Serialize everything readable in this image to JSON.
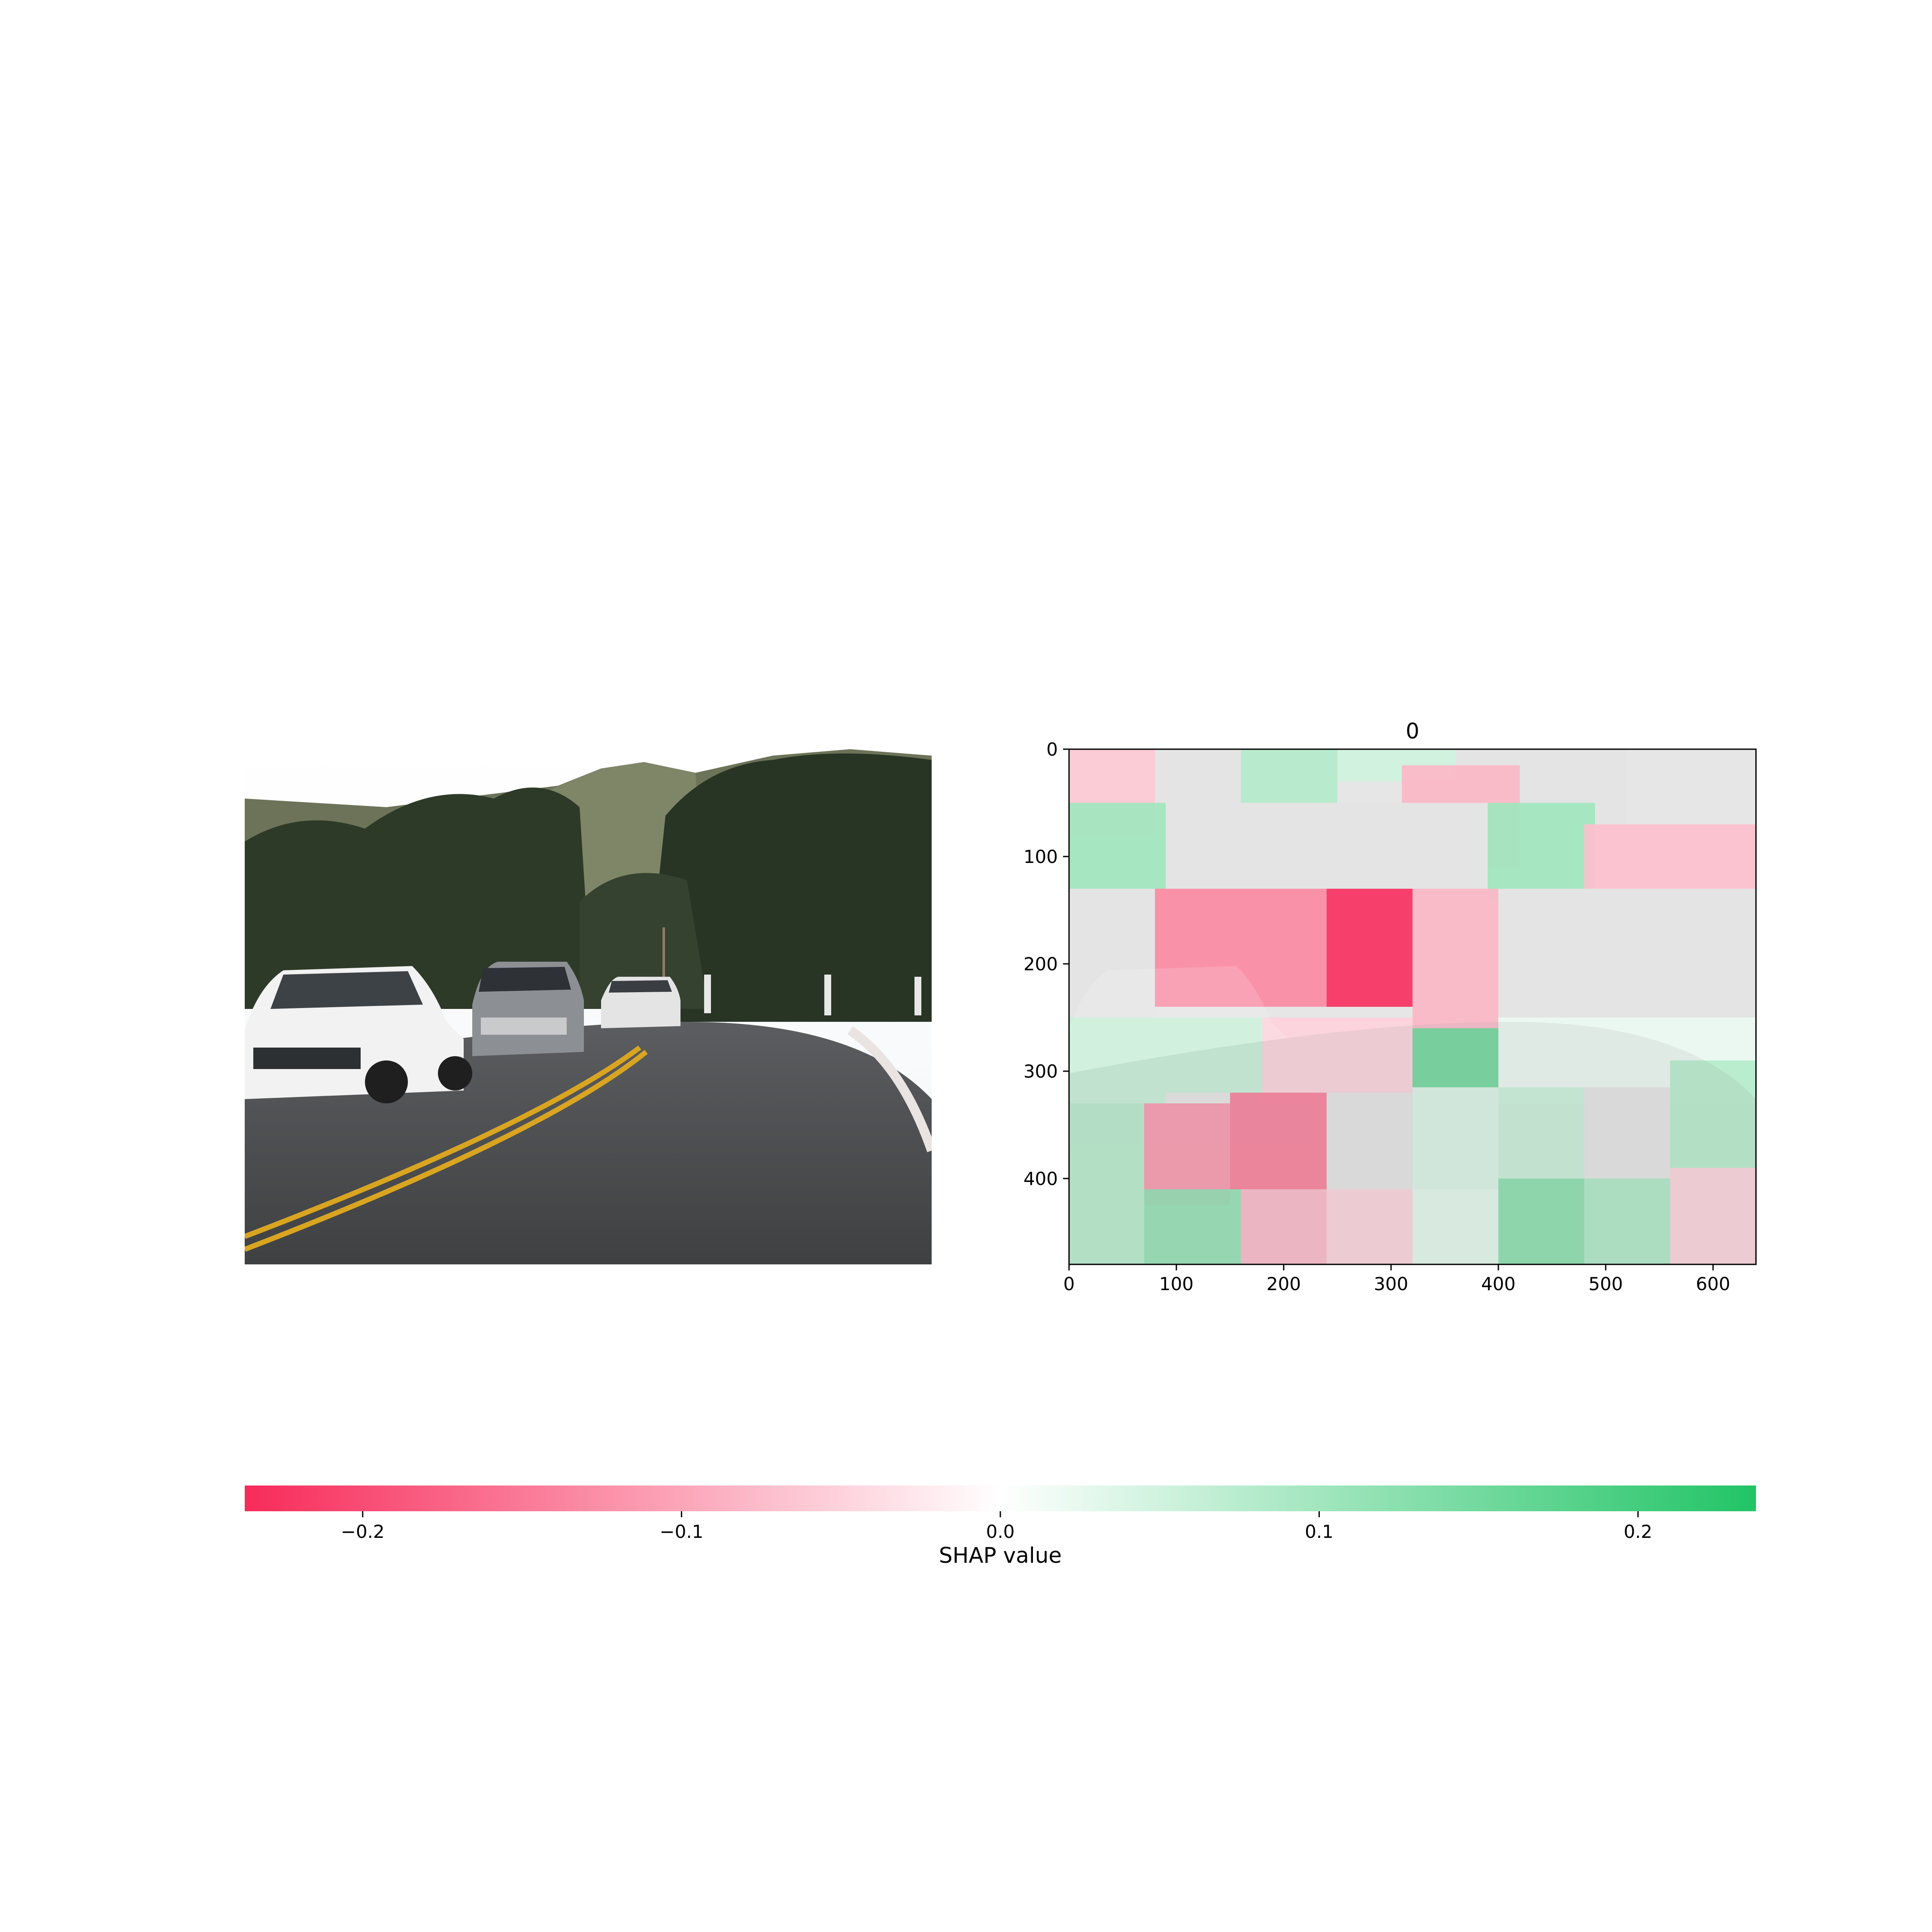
{
  "chart_data": [
    {
      "type": "image",
      "panel": "input-image",
      "title": "",
      "content": "road-scene-photo"
    },
    {
      "type": "heatmap",
      "panel": "shap-superpixel-map",
      "title": "0",
      "xlim": [
        0,
        640
      ],
      "ylim": [
        480,
        0
      ],
      "xticks": [
        0,
        100,
        200,
        300,
        400,
        500,
        600
      ],
      "yticks": [
        0,
        100,
        200,
        300,
        400
      ],
      "segments": [
        {
          "cells": [
            [
              0,
              0
            ],
            [
              80,
              0
            ],
            [
              80,
              80
            ],
            [
              0,
              80
            ]
          ],
          "value": -0.06
        },
        {
          "cells": [
            [
              80,
              0
            ],
            [
              160,
              0
            ],
            [
              160,
              50
            ],
            [
              80,
              50
            ]
          ],
          "value": 0.0
        },
        {
          "cells": [
            [
              160,
              0
            ],
            [
              250,
              0
            ],
            [
              250,
              50
            ],
            [
              160,
              50
            ]
          ],
          "value": 0.08
        },
        {
          "cells": [
            [
              250,
              0
            ],
            [
              360,
              0
            ],
            [
              360,
              30
            ],
            [
              250,
              30
            ]
          ],
          "value": 0.05
        },
        {
          "cells": [
            [
              360,
              0
            ],
            [
              520,
              0
            ],
            [
              520,
              80
            ],
            [
              360,
              80
            ]
          ],
          "value": 0.0
        },
        {
          "cells": [
            [
              0,
              50
            ],
            [
              90,
              50
            ],
            [
              90,
              130
            ],
            [
              0,
              130
            ]
          ],
          "value": 0.1
        },
        {
          "cells": [
            [
              310,
              15
            ],
            [
              420,
              15
            ],
            [
              420,
              110
            ],
            [
              310,
              110
            ]
          ],
          "value": -0.08
        },
        {
          "cells": [
            [
              390,
              50
            ],
            [
              490,
              50
            ],
            [
              490,
              140
            ],
            [
              390,
              140
            ]
          ],
          "value": 0.1
        },
        {
          "cells": [
            [
              480,
              70
            ],
            [
              640,
              70
            ],
            [
              640,
              140
            ],
            [
              480,
              140
            ]
          ],
          "value": -0.07
        },
        {
          "cells": [
            [
              90,
              50
            ],
            [
              390,
              50
            ],
            [
              390,
              130
            ],
            [
              90,
              130
            ]
          ],
          "value": 0.0
        },
        {
          "cells": [
            [
              0,
              130
            ],
            [
              80,
              130
            ],
            [
              80,
              250
            ],
            [
              0,
              250
            ]
          ],
          "value": 0.0
        },
        {
          "cells": [
            [
              80,
              130
            ],
            [
              240,
              130
            ],
            [
              240,
              240
            ],
            [
              80,
              240
            ]
          ],
          "value": -0.13
        },
        {
          "cells": [
            [
              240,
              130
            ],
            [
              320,
              130
            ],
            [
              320,
              240
            ],
            [
              240,
              240
            ]
          ],
          "value": -0.23
        },
        {
          "cells": [
            [
              320,
              130
            ],
            [
              400,
              130
            ],
            [
              400,
              260
            ],
            [
              320,
              260
            ]
          ],
          "value": -0.08
        },
        {
          "cells": [
            [
              400,
              130
            ],
            [
              640,
              130
            ],
            [
              640,
              250
            ],
            [
              400,
              250
            ]
          ],
          "value": 0.0
        },
        {
          "cells": [
            [
              0,
              250
            ],
            [
              90,
              250
            ],
            [
              90,
              330
            ],
            [
              0,
              330
            ]
          ],
          "value": 0.06
        },
        {
          "cells": [
            [
              90,
              250
            ],
            [
              180,
              250
            ],
            [
              180,
              320
            ],
            [
              90,
              320
            ]
          ],
          "value": 0.06
        },
        {
          "cells": [
            [
              180,
              250
            ],
            [
              320,
              250
            ],
            [
              320,
              330
            ],
            [
              180,
              330
            ]
          ],
          "value": -0.05
        },
        {
          "cells": [
            [
              320,
              260
            ],
            [
              400,
              260
            ],
            [
              400,
              315
            ],
            [
              320,
              315
            ]
          ],
          "value": 0.16
        },
        {
          "cells": [
            [
              400,
              250
            ],
            [
              640,
              250
            ],
            [
              640,
              330
            ],
            [
              400,
              330
            ]
          ],
          "value": 0.02
        },
        {
          "cells": [
            [
              0,
              330
            ],
            [
              70,
              330
            ],
            [
              70,
              480
            ],
            [
              0,
              480
            ]
          ],
          "value": 0.08
        },
        {
          "cells": [
            [
              70,
              330
            ],
            [
              150,
              330
            ],
            [
              150,
              425
            ],
            [
              70,
              425
            ]
          ],
          "value": -0.12
        },
        {
          "cells": [
            [
              150,
              320
            ],
            [
              240,
              320
            ],
            [
              240,
              410
            ],
            [
              150,
              410
            ]
          ],
          "value": -0.15
        },
        {
          "cells": [
            [
              240,
              320
            ],
            [
              320,
              320
            ],
            [
              320,
              410
            ],
            [
              240,
              410
            ]
          ],
          "value": 0.0
        },
        {
          "cells": [
            [
              320,
              315
            ],
            [
              400,
              315
            ],
            [
              400,
              410
            ],
            [
              320,
              410
            ]
          ],
          "value": 0.04
        },
        {
          "cells": [
            [
              400,
              315
            ],
            [
              480,
              315
            ],
            [
              480,
              400
            ],
            [
              400,
              400
            ]
          ],
          "value": 0.06
        },
        {
          "cells": [
            [
              480,
              315
            ],
            [
              560,
              315
            ],
            [
              560,
              400
            ],
            [
              480,
              400
            ]
          ],
          "value": 0.0
        },
        {
          "cells": [
            [
              560,
              290
            ],
            [
              640,
              290
            ],
            [
              640,
              390
            ],
            [
              560,
              390
            ]
          ],
          "value": 0.08
        },
        {
          "cells": [
            [
              70,
              410
            ],
            [
              160,
              410
            ],
            [
              160,
              480
            ],
            [
              70,
              480
            ]
          ],
          "value": 0.12
        },
        {
          "cells": [
            [
              160,
              410
            ],
            [
              240,
              410
            ],
            [
              240,
              480
            ],
            [
              160,
              480
            ]
          ],
          "value": -0.08
        },
        {
          "cells": [
            [
              240,
              410
            ],
            [
              320,
              410
            ],
            [
              320,
              480
            ],
            [
              240,
              480
            ]
          ],
          "value": -0.05
        },
        {
          "cells": [
            [
              320,
              410
            ],
            [
              400,
              410
            ],
            [
              400,
              480
            ],
            [
              320,
              480
            ]
          ],
          "value": 0.03
        },
        {
          "cells": [
            [
              400,
              400
            ],
            [
              480,
              400
            ],
            [
              480,
              480
            ],
            [
              400,
              480
            ]
          ],
          "value": 0.13
        },
        {
          "cells": [
            [
              480,
              400
            ],
            [
              560,
              400
            ],
            [
              560,
              480
            ],
            [
              480,
              480
            ]
          ],
          "value": 0.09
        },
        {
          "cells": [
            [
              560,
              390
            ],
            [
              640,
              390
            ],
            [
              640,
              480
            ],
            [
              560,
              480
            ]
          ],
          "value": -0.05
        }
      ]
    },
    {
      "type": "colorbar",
      "panel": "shap-colorbar",
      "label": "SHAP value",
      "range": [
        -0.237,
        0.237
      ],
      "ticks": [
        -0.2,
        -0.1,
        0.0,
        0.1,
        0.2
      ],
      "tick_labels": [
        "−0.2",
        "−0.1",
        "0.0",
        "0.1",
        "0.2"
      ],
      "colors": {
        "negative": "#f72b5a",
        "zero": "#ffffff",
        "positive": "#21c466"
      }
    }
  ]
}
